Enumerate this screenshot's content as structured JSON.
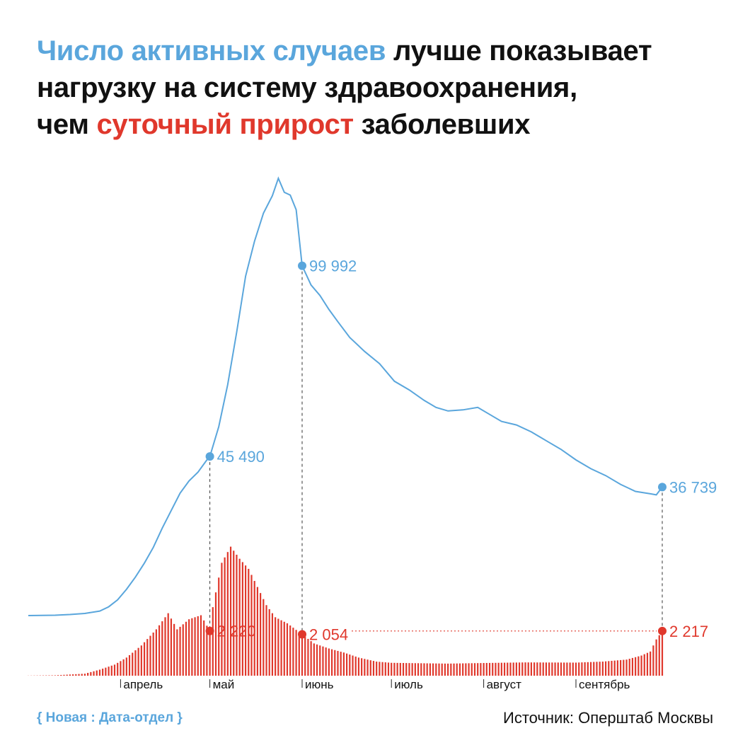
{
  "title": {
    "part1": "Число активных случаев",
    "part2": " лучше показывает",
    "part3": "нагрузку на систему здравоохранения,",
    "part4": "чем ",
    "part5": "суточный прирост",
    "part6": " заболевших"
  },
  "footer": {
    "brand": "{ Новая : Дата-отдел }",
    "source": "Источник: Оперштаб Москвы"
  },
  "colors": {
    "active": "#5aa6dc",
    "daily": "#e0382c",
    "text": "#111111"
  },
  "chart_data": {
    "type": "line",
    "x_axis": {
      "tick_labels": [
        "апрель",
        "май",
        "июнь",
        "июль",
        "август",
        "сентябрь"
      ]
    },
    "series": [
      {
        "key": "active",
        "type": "line",
        "annotations": [
          {
            "date": "2020-05-01",
            "label": "45 490"
          },
          {
            "date": "2020-06-01",
            "label": "99 992"
          },
          {
            "date": "2020-09-30",
            "label": "36 739"
          }
        ],
        "points": [
          [
            "2020-03-01",
            0
          ],
          [
            "2020-03-10",
            100
          ],
          [
            "2020-03-15",
            300
          ],
          [
            "2020-03-20",
            600
          ],
          [
            "2020-03-25",
            1300
          ],
          [
            "2020-03-28",
            2500
          ],
          [
            "2020-03-31",
            4500
          ],
          [
            "2020-04-03",
            7500
          ],
          [
            "2020-04-06",
            11000
          ],
          [
            "2020-04-09",
            15000
          ],
          [
            "2020-04-12",
            19500
          ],
          [
            "2020-04-15",
            25000
          ],
          [
            "2020-04-18",
            30000
          ],
          [
            "2020-04-21",
            35000
          ],
          [
            "2020-04-24",
            38500
          ],
          [
            "2020-04-27",
            41000
          ],
          [
            "2020-04-30",
            44500
          ],
          [
            "2020-05-01",
            45490
          ],
          [
            "2020-05-04",
            54000
          ],
          [
            "2020-05-07",
            66000
          ],
          [
            "2020-05-10",
            81000
          ],
          [
            "2020-05-13",
            97000
          ],
          [
            "2020-05-16",
            107000
          ],
          [
            "2020-05-19",
            115000
          ],
          [
            "2020-05-22",
            120000
          ],
          [
            "2020-05-24",
            125000
          ],
          [
            "2020-05-26",
            121000
          ],
          [
            "2020-05-28",
            120200
          ],
          [
            "2020-05-30",
            116000
          ],
          [
            "2020-06-01",
            99992
          ],
          [
            "2020-06-04",
            94500
          ],
          [
            "2020-06-07",
            91500
          ],
          [
            "2020-06-10",
            87500
          ],
          [
            "2020-06-13",
            84000
          ],
          [
            "2020-06-17",
            79500
          ],
          [
            "2020-06-22",
            75500
          ],
          [
            "2020-06-27",
            72000
          ],
          [
            "2020-07-02",
            67000
          ],
          [
            "2020-07-07",
            64500
          ],
          [
            "2020-07-12",
            61500
          ],
          [
            "2020-07-16",
            59500
          ],
          [
            "2020-07-20",
            58500
          ],
          [
            "2020-07-25",
            58800
          ],
          [
            "2020-07-30",
            59500
          ],
          [
            "2020-08-03",
            57500
          ],
          [
            "2020-08-07",
            55500
          ],
          [
            "2020-08-12",
            54500
          ],
          [
            "2020-08-17",
            52500
          ],
          [
            "2020-08-22",
            50000
          ],
          [
            "2020-08-27",
            47500
          ],
          [
            "2020-09-01",
            44500
          ],
          [
            "2020-09-06",
            42000
          ],
          [
            "2020-09-11",
            40000
          ],
          [
            "2020-09-16",
            37500
          ],
          [
            "2020-09-21",
            35500
          ],
          [
            "2020-09-26",
            34800
          ],
          [
            "2020-09-28",
            34500
          ],
          [
            "2020-09-30",
            36739
          ]
        ]
      },
      {
        "key": "daily",
        "type": "bar",
        "annotations": [
          {
            "date": "2020-05-01",
            "label": "2 220"
          },
          {
            "date": "2020-06-01",
            "label": "2 054"
          },
          {
            "date": "2020-09-30",
            "label": "2 217"
          }
        ],
        "knots": [
          [
            "2020-03-01",
            5
          ],
          [
            "2020-03-10",
            20
          ],
          [
            "2020-03-20",
            100
          ],
          [
            "2020-03-25",
            300
          ],
          [
            "2020-03-30",
            550
          ],
          [
            "2020-04-03",
            900
          ],
          [
            "2020-04-08",
            1500
          ],
          [
            "2020-04-13",
            2300
          ],
          [
            "2020-04-17",
            3100
          ],
          [
            "2020-04-20",
            2300
          ],
          [
            "2020-04-24",
            2800
          ],
          [
            "2020-04-28",
            3000
          ],
          [
            "2020-05-01",
            2220
          ],
          [
            "2020-05-02",
            3400
          ],
          [
            "2020-05-05",
            5600
          ],
          [
            "2020-05-08",
            6400
          ],
          [
            "2020-05-11",
            5800
          ],
          [
            "2020-05-14",
            5300
          ],
          [
            "2020-05-17",
            4400
          ],
          [
            "2020-05-20",
            3500
          ],
          [
            "2020-05-23",
            2900
          ],
          [
            "2020-05-27",
            2600
          ],
          [
            "2020-06-01",
            2054
          ],
          [
            "2020-06-05",
            1600
          ],
          [
            "2020-06-10",
            1350
          ],
          [
            "2020-06-15",
            1150
          ],
          [
            "2020-06-20",
            900
          ],
          [
            "2020-06-26",
            700
          ],
          [
            "2020-07-01",
            640
          ],
          [
            "2020-07-10",
            620
          ],
          [
            "2020-07-20",
            600
          ],
          [
            "2020-08-01",
            630
          ],
          [
            "2020-08-15",
            660
          ],
          [
            "2020-09-01",
            650
          ],
          [
            "2020-09-10",
            700
          ],
          [
            "2020-09-18",
            800
          ],
          [
            "2020-09-23",
            1000
          ],
          [
            "2020-09-26",
            1200
          ],
          [
            "2020-09-28",
            1800
          ],
          [
            "2020-09-30",
            2217
          ]
        ]
      }
    ],
    "reference_line": {
      "date_from": "2020-06-01",
      "date_to": "2020-09-30",
      "series": "daily",
      "style": "dotted"
    }
  }
}
